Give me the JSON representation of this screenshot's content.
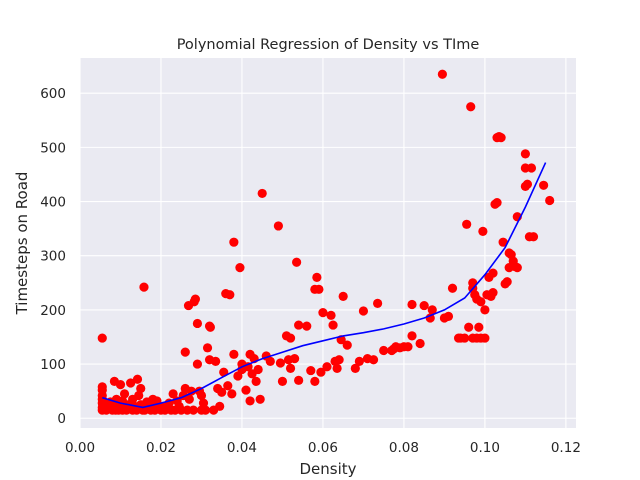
{
  "chart_data": {
    "type": "scatter",
    "title": "Polynomial Regression of Density vs TIme",
    "xlabel": "Density",
    "ylabel": "Timesteps on Road",
    "xlim": [
      0.0,
      0.1225
    ],
    "ylim": [
      -18,
      665
    ],
    "xticks": [
      "0.00",
      "0.02",
      "0.04",
      "0.06",
      "0.08",
      "0.10",
      "0.12"
    ],
    "yticks": [
      "0",
      "100",
      "200",
      "300",
      "400",
      "500",
      "600"
    ],
    "xtick_values": [
      0.0,
      0.02,
      0.04,
      0.06,
      0.08,
      0.1,
      0.12
    ],
    "ytick_values": [
      0,
      100,
      200,
      300,
      400,
      500,
      600
    ],
    "background": "#eaeaf2",
    "grid": true,
    "series": [
      {
        "name": "observed",
        "kind": "scatter",
        "color": "#ff0000",
        "points": [
          [
            0.0055,
            15
          ],
          [
            0.0055,
            20
          ],
          [
            0.0055,
            28
          ],
          [
            0.0055,
            35
          ],
          [
            0.0055,
            42
          ],
          [
            0.0055,
            52
          ],
          [
            0.0055,
            58
          ],
          [
            0.0055,
            148
          ],
          [
            0.0065,
            15
          ],
          [
            0.0068,
            22
          ],
          [
            0.007,
            18
          ],
          [
            0.0075,
            30
          ],
          [
            0.008,
            15
          ],
          [
            0.008,
            25
          ],
          [
            0.0085,
            68
          ],
          [
            0.0088,
            15
          ],
          [
            0.009,
            28
          ],
          [
            0.009,
            35
          ],
          [
            0.0095,
            15
          ],
          [
            0.0098,
            22
          ],
          [
            0.01,
            62
          ],
          [
            0.0105,
            15
          ],
          [
            0.0105,
            32
          ],
          [
            0.011,
            18
          ],
          [
            0.011,
            45
          ],
          [
            0.0115,
            15
          ],
          [
            0.012,
            25
          ],
          [
            0.0125,
            65
          ],
          [
            0.013,
            15
          ],
          [
            0.013,
            35
          ],
          [
            0.0135,
            22
          ],
          [
            0.014,
            15
          ],
          [
            0.0142,
            72
          ],
          [
            0.0145,
            42
          ],
          [
            0.015,
            25
          ],
          [
            0.015,
            55
          ],
          [
            0.0155,
            15
          ],
          [
            0.0158,
            242
          ],
          [
            0.016,
            15
          ],
          [
            0.0165,
            30
          ],
          [
            0.017,
            22
          ],
          [
            0.0175,
            15
          ],
          [
            0.018,
            35
          ],
          [
            0.0185,
            15
          ],
          [
            0.019,
            25
          ],
          [
            0.019,
            32
          ],
          [
            0.02,
            15
          ],
          [
            0.0205,
            22
          ],
          [
            0.021,
            15
          ],
          [
            0.022,
            28
          ],
          [
            0.0225,
            15
          ],
          [
            0.023,
            45
          ],
          [
            0.0235,
            15
          ],
          [
            0.024,
            32
          ],
          [
            0.0245,
            22
          ],
          [
            0.025,
            15
          ],
          [
            0.0255,
            42
          ],
          [
            0.026,
            55
          ],
          [
            0.026,
            122
          ],
          [
            0.0265,
            15
          ],
          [
            0.027,
            35
          ],
          [
            0.0268,
            208
          ],
          [
            0.0275,
            50
          ],
          [
            0.028,
            15
          ],
          [
            0.0282,
            215
          ],
          [
            0.0285,
            220
          ],
          [
            0.029,
            100
          ],
          [
            0.029,
            175
          ],
          [
            0.0295,
            50
          ],
          [
            0.03,
            15
          ],
          [
            0.03,
            42
          ],
          [
            0.0305,
            28
          ],
          [
            0.031,
            15
          ],
          [
            0.0315,
            130
          ],
          [
            0.032,
            170
          ],
          [
            0.032,
            108
          ],
          [
            0.0322,
            168
          ],
          [
            0.033,
            15
          ],
          [
            0.0335,
            105
          ],
          [
            0.034,
            55
          ],
          [
            0.0345,
            22
          ],
          [
            0.035,
            48
          ],
          [
            0.0355,
            85
          ],
          [
            0.036,
            230
          ],
          [
            0.0365,
            60
          ],
          [
            0.037,
            228
          ],
          [
            0.0375,
            45
          ],
          [
            0.038,
            118
          ],
          [
            0.038,
            325
          ],
          [
            0.039,
            78
          ],
          [
            0.0395,
            278
          ],
          [
            0.04,
            90
          ],
          [
            0.04,
            100
          ],
          [
            0.041,
            52
          ],
          [
            0.0415,
            95
          ],
          [
            0.042,
            32
          ],
          [
            0.042,
            118
          ],
          [
            0.0425,
            82
          ],
          [
            0.043,
            110
          ],
          [
            0.0435,
            68
          ],
          [
            0.044,
            90
          ],
          [
            0.0445,
            35
          ],
          [
            0.045,
            415
          ],
          [
            0.046,
            115
          ],
          [
            0.047,
            105
          ],
          [
            0.049,
            355
          ],
          [
            0.0495,
            102
          ],
          [
            0.05,
            68
          ],
          [
            0.051,
            152
          ],
          [
            0.0515,
            108
          ],
          [
            0.052,
            92
          ],
          [
            0.052,
            148
          ],
          [
            0.053,
            110
          ],
          [
            0.0535,
            288
          ],
          [
            0.054,
            70
          ],
          [
            0.054,
            172
          ],
          [
            0.056,
            170
          ],
          [
            0.057,
            88
          ],
          [
            0.058,
            68
          ],
          [
            0.058,
            238
          ],
          [
            0.0585,
            260
          ],
          [
            0.059,
            238
          ],
          [
            0.0595,
            85
          ],
          [
            0.06,
            195
          ],
          [
            0.061,
            95
          ],
          [
            0.062,
            190
          ],
          [
            0.0625,
            172
          ],
          [
            0.063,
            105
          ],
          [
            0.0635,
            92
          ],
          [
            0.064,
            108
          ],
          [
            0.0645,
            145
          ],
          [
            0.065,
            225
          ],
          [
            0.066,
            135
          ],
          [
            0.068,
            92
          ],
          [
            0.069,
            105
          ],
          [
            0.07,
            198
          ],
          [
            0.071,
            110
          ],
          [
            0.0725,
            108
          ],
          [
            0.0735,
            212
          ],
          [
            0.075,
            125
          ],
          [
            0.077,
            125
          ],
          [
            0.0775,
            128
          ],
          [
            0.078,
            132
          ],
          [
            0.079,
            130
          ],
          [
            0.08,
            132
          ],
          [
            0.081,
            132
          ],
          [
            0.082,
            152
          ],
          [
            0.082,
            210
          ],
          [
            0.084,
            138
          ],
          [
            0.085,
            208
          ],
          [
            0.0865,
            185
          ],
          [
            0.087,
            200
          ],
          [
            0.0895,
            635
          ],
          [
            0.09,
            185
          ],
          [
            0.091,
            188
          ],
          [
            0.092,
            240
          ],
          [
            0.0935,
            148
          ],
          [
            0.094,
            148
          ],
          [
            0.095,
            148
          ],
          [
            0.0955,
            358
          ],
          [
            0.0965,
            575
          ],
          [
            0.096,
            168
          ],
          [
            0.097,
            148
          ],
          [
            0.097,
            240
          ],
          [
            0.097,
            250
          ],
          [
            0.0975,
            228
          ],
          [
            0.098,
            220
          ],
          [
            0.098,
            148
          ],
          [
            0.0985,
            168
          ],
          [
            0.099,
            215
          ],
          [
            0.099,
            148
          ],
          [
            0.0995,
            345
          ],
          [
            0.1,
            200
          ],
          [
            0.1,
            148
          ],
          [
            0.1005,
            228
          ],
          [
            0.101,
            260
          ],
          [
            0.1015,
            225
          ],
          [
            0.102,
            232
          ],
          [
            0.102,
            268
          ],
          [
            0.1025,
            395
          ],
          [
            0.103,
            398
          ],
          [
            0.103,
            518
          ],
          [
            0.1035,
            520
          ],
          [
            0.104,
            518
          ],
          [
            0.1045,
            325
          ],
          [
            0.105,
            248
          ],
          [
            0.1055,
            252
          ],
          [
            0.106,
            305
          ],
          [
            0.106,
            278
          ],
          [
            0.1065,
            302
          ],
          [
            0.107,
            290
          ],
          [
            0.1075,
            280
          ],
          [
            0.108,
            278
          ],
          [
            0.108,
            372
          ],
          [
            0.11,
            488
          ],
          [
            0.11,
            428
          ],
          [
            0.11,
            462
          ],
          [
            0.1105,
            432
          ],
          [
            0.111,
            335
          ],
          [
            0.1115,
            462
          ],
          [
            0.112,
            335
          ],
          [
            0.1145,
            430
          ],
          [
            0.116,
            402
          ]
        ]
      },
      {
        "name": "fit",
        "kind": "line",
        "color": "#0000ff",
        "points": [
          [
            0.0055,
            38
          ],
          [
            0.01,
            28
          ],
          [
            0.0155,
            20
          ],
          [
            0.02,
            28
          ],
          [
            0.025,
            38
          ],
          [
            0.03,
            55
          ],
          [
            0.035,
            75
          ],
          [
            0.04,
            95
          ],
          [
            0.045,
            110
          ],
          [
            0.05,
            122
          ],
          [
            0.055,
            134
          ],
          [
            0.06,
            143
          ],
          [
            0.065,
            152
          ],
          [
            0.07,
            158
          ],
          [
            0.075,
            165
          ],
          [
            0.08,
            174
          ],
          [
            0.085,
            185
          ],
          [
            0.09,
            200
          ],
          [
            0.095,
            222
          ],
          [
            0.1,
            265
          ],
          [
            0.105,
            315
          ],
          [
            0.11,
            390
          ],
          [
            0.115,
            472
          ]
        ]
      }
    ]
  }
}
